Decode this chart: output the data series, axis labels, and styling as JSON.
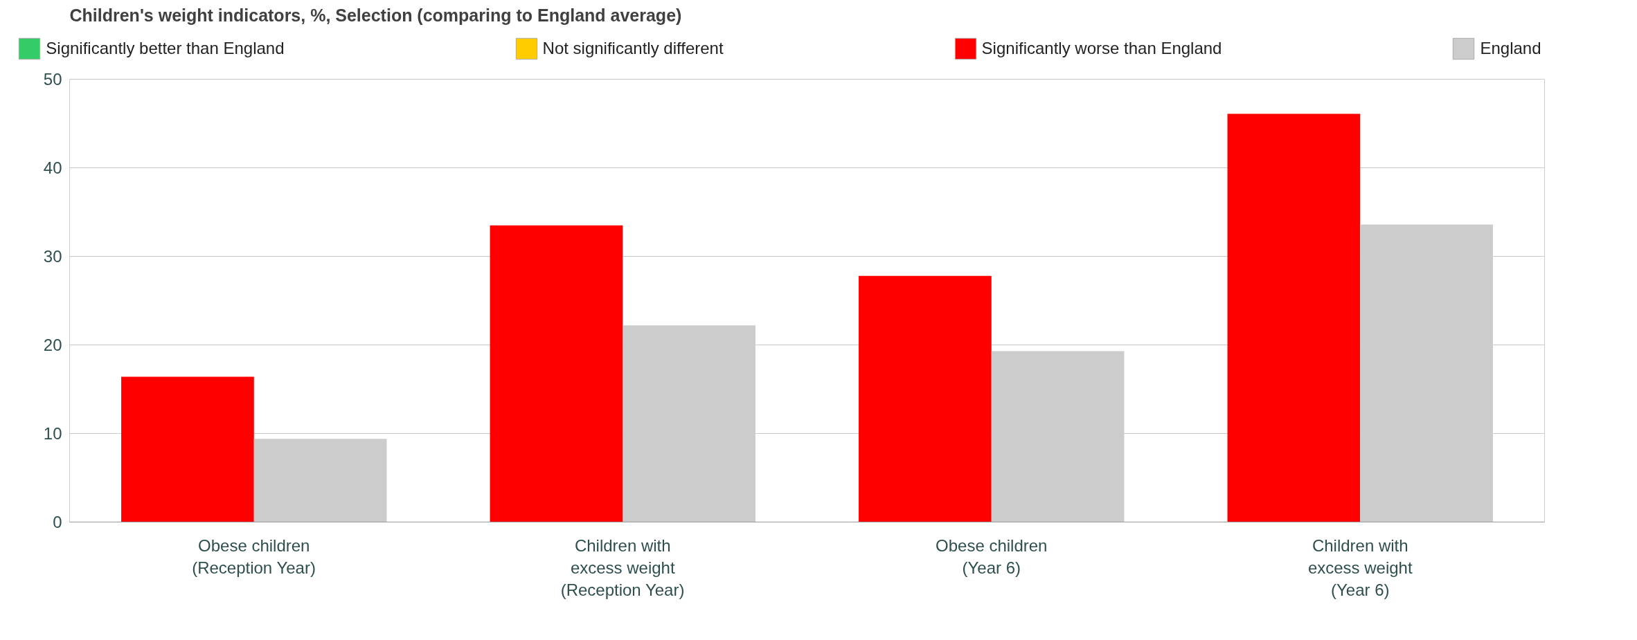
{
  "chart_data": {
    "type": "bar",
    "title": "Children's weight indicators, %, Selection (comparing to England average)",
    "categories": [
      "Obese children (Reception Year)",
      "Children with excess weight (Reception Year)",
      "Obese children (Year 6)",
      "Children with excess weight (Year 6)"
    ],
    "series": [
      {
        "name": "Significantly better than England",
        "color": "#33cc66",
        "values": [
          null,
          null,
          null,
          null
        ]
      },
      {
        "name": "Not significantly different",
        "color": "#ffcc00",
        "values": [
          null,
          null,
          null,
          null
        ]
      },
      {
        "name": "Significantly worse than England",
        "color": "#ff0000",
        "values": [
          16.4,
          33.5,
          27.8,
          46.1
        ]
      },
      {
        "name": "England",
        "color": "#cccccc",
        "values": [
          9.4,
          22.2,
          19.3,
          33.6
        ]
      }
    ],
    "ylim": [
      0,
      50
    ],
    "yticks": [
      0,
      10,
      20,
      30,
      40,
      50
    ],
    "grid": "y",
    "legend": "top"
  }
}
